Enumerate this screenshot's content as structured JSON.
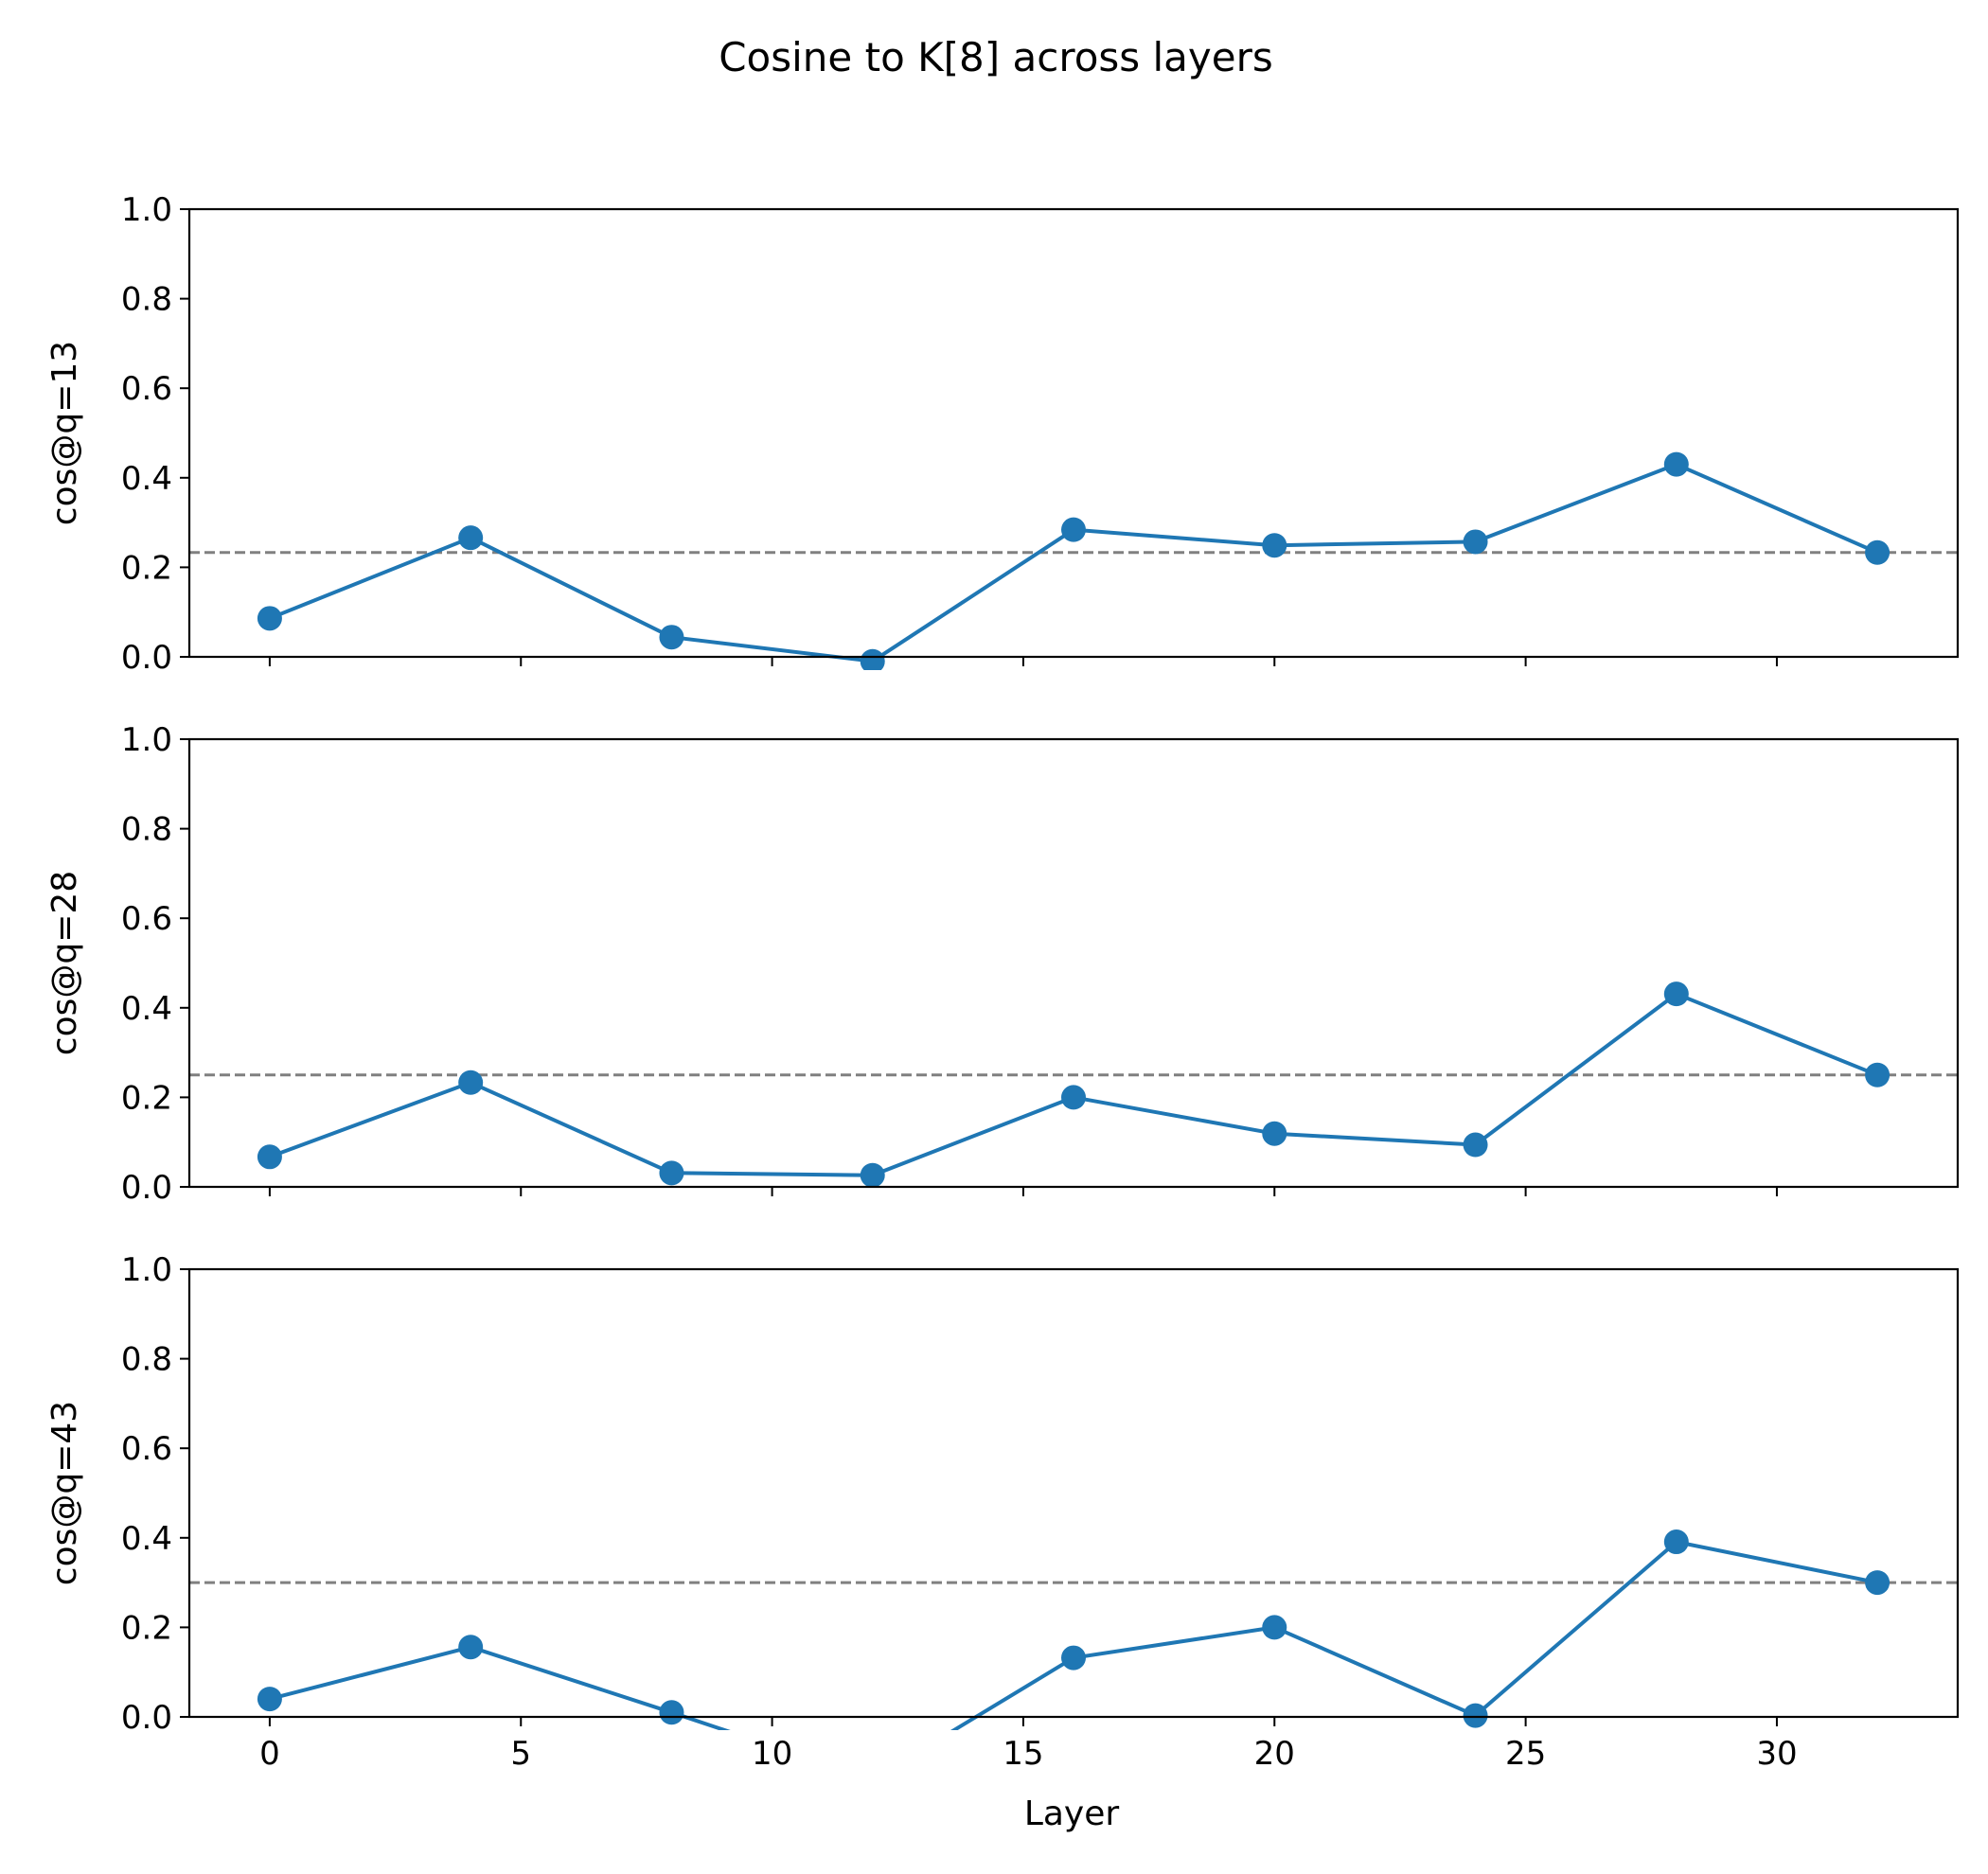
{
  "title": "Cosine to K[8] across layers",
  "xlabel": "Layer",
  "colors": {
    "series": "#1f77b4",
    "reference": "#808080",
    "axes": "#000000"
  },
  "chart_data": [
    {
      "type": "line",
      "ylabel": "cos@q=13",
      "x": [
        0,
        4,
        8,
        12,
        16,
        20,
        24,
        28,
        32
      ],
      "values": [
        0.086,
        0.266,
        0.044,
        -0.01,
        0.284,
        0.249,
        0.257,
        0.43,
        0.233
      ],
      "reference_line": 0.233,
      "reference_style": "dashed",
      "ylim": [
        0.0,
        1.0
      ],
      "yticks": [
        "0.0",
        "0.2",
        "0.4",
        "0.6",
        "0.8",
        "1.0"
      ],
      "xlim": [
        -1.6,
        33.6
      ],
      "xticks": [
        "0",
        "5",
        "10",
        "15",
        "20",
        "25",
        "30"
      ],
      "show_xtick_labels": false,
      "grid": false
    },
    {
      "type": "line",
      "ylabel": "cos@q=28",
      "x": [
        0,
        4,
        8,
        12,
        16,
        20,
        24,
        28,
        32
      ],
      "values": [
        0.067,
        0.233,
        0.031,
        0.026,
        0.2,
        0.119,
        0.094,
        0.431,
        0.25
      ],
      "reference_line": 0.25,
      "reference_style": "dashed",
      "ylim": [
        0.0,
        1.0
      ],
      "yticks": [
        "0.0",
        "0.2",
        "0.4",
        "0.6",
        "0.8",
        "1.0"
      ],
      "xlim": [
        -1.6,
        33.6
      ],
      "xticks": [
        "0",
        "5",
        "10",
        "15",
        "20",
        "25",
        "30"
      ],
      "show_xtick_labels": false,
      "grid": false
    },
    {
      "type": "line",
      "ylabel": "cos@q=43",
      "x": [
        0,
        4,
        8,
        12,
        16,
        20,
        24,
        28,
        32
      ],
      "values": [
        0.04,
        0.156,
        0.01,
        -0.14,
        0.132,
        0.2,
        0.003,
        0.391,
        0.3
      ],
      "reference_line": 0.3,
      "reference_style": "dashed",
      "ylim": [
        0.0,
        1.0
      ],
      "yticks": [
        "0.0",
        "0.2",
        "0.4",
        "0.6",
        "0.8",
        "1.0"
      ],
      "xlim": [
        -1.6,
        33.6
      ],
      "xticks": [
        "0",
        "5",
        "10",
        "15",
        "20",
        "25",
        "30"
      ],
      "show_xtick_labels": true,
      "grid": false
    }
  ]
}
